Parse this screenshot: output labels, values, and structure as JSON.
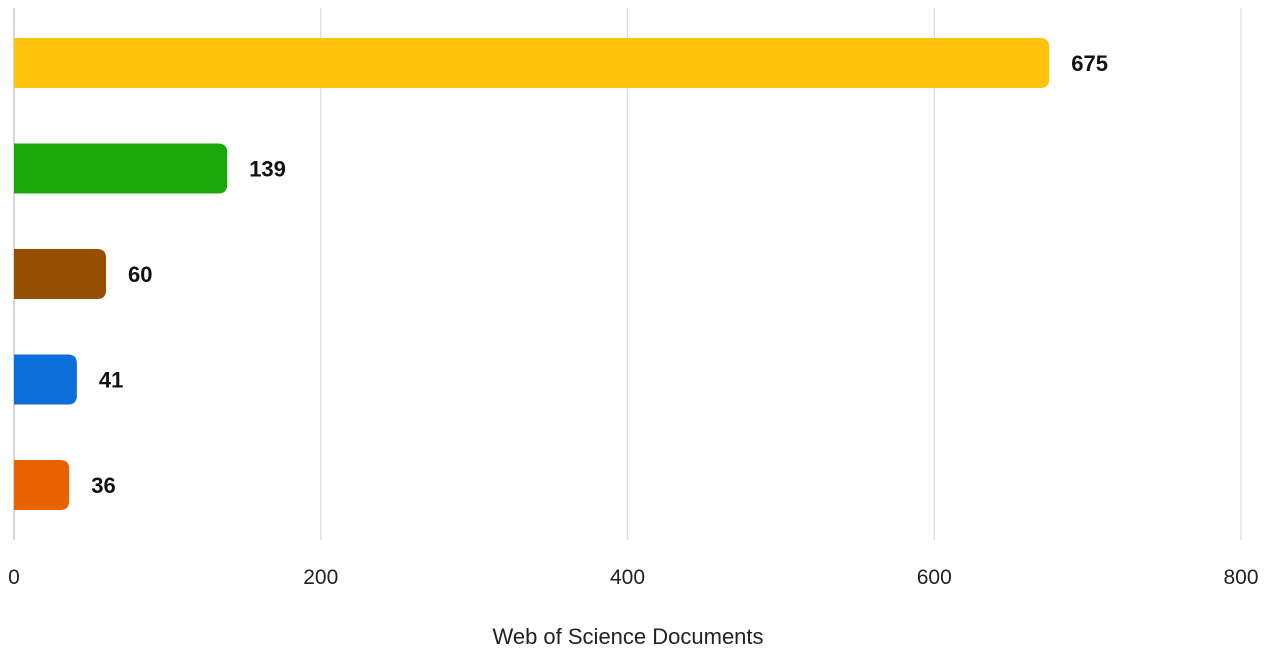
{
  "chart_data": {
    "type": "bar",
    "orientation": "horizontal",
    "title": "",
    "xlabel": "Web of Science Documents",
    "ylabel": "",
    "xlim": [
      0,
      800
    ],
    "xticks": [
      "0",
      "200",
      "400",
      "600",
      "800"
    ],
    "grid": "vertical",
    "legend": "none",
    "bars": [
      {
        "value": 675,
        "label": "675",
        "color": "#FFC20E"
      },
      {
        "value": 139,
        "label": "139",
        "color": "#1AA90A"
      },
      {
        "value": 60,
        "label": "60",
        "color": "#974E00"
      },
      {
        "value": 41,
        "label": "41",
        "color": "#0A6FD8"
      },
      {
        "value": 36,
        "label": "36",
        "color": "#E96200"
      }
    ]
  }
}
